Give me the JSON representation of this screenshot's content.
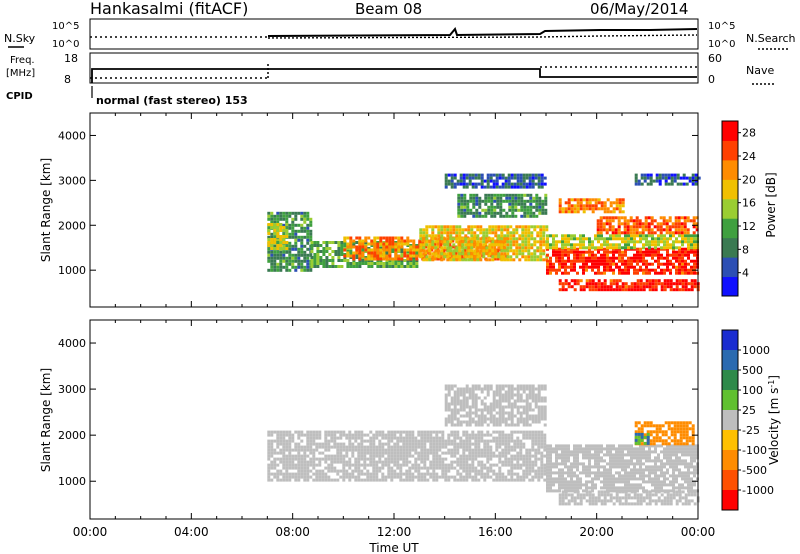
{
  "header": {
    "station": "Hankasalmi (fitACF)",
    "beam": "Beam 08",
    "date": "06/May/2014"
  },
  "noise_panel": {
    "left_label": "N.Sky",
    "right_label": "N.Search",
    "left_ticks": [
      "10^5",
      "10^0"
    ],
    "right_ticks": [
      "10^5",
      "10^0"
    ]
  },
  "freq_panel": {
    "left_label_line1": "Freq.",
    "left_label_line2": "[MHz]",
    "right_label": "Nave",
    "cpid_label": "CPID",
    "left_ticks": [
      "18",
      "8"
    ],
    "right_ticks": [
      "60",
      "0"
    ],
    "cpid_text": "normal (fast stereo) 153"
  },
  "time_axis": {
    "label": "Time UT",
    "ticks": [
      "00:00",
      "04:00",
      "08:00",
      "12:00",
      "16:00",
      "20:00",
      "00:00"
    ]
  },
  "colors": {
    "ground_scatter": "#bebebe",
    "power_scale": [
      "#1010ff",
      "#2c4fb4",
      "#3a7a52",
      "#3fa03f",
      "#9acd32",
      "#f0c000",
      "#ff8c00",
      "#ff4000",
      "#ff0000"
    ],
    "velocity_scale": [
      "#1a2cd0",
      "#2a6ab0",
      "#2e8a4a",
      "#60c030",
      "#bebebe",
      "#ffc000",
      "#ff8c00",
      "#ff5000",
      "#ff0000"
    ]
  },
  "chart_data": [
    {
      "type": "heatmap",
      "title": "Power",
      "ylabel": "Slant Range [km]",
      "xlabel": "",
      "x_range_hours": [
        0,
        24
      ],
      "ylim": [
        180,
        4500
      ],
      "yticks": [
        "4000",
        "3000",
        "2000",
        "1000"
      ],
      "colorbar": {
        "label": "Power [dB]",
        "ticks": [
          "28",
          "24",
          "20",
          "16",
          "12",
          "8",
          "4"
        ],
        "range": [
          0,
          30
        ]
      },
      "bands": [
        {
          "start_h": 7.0,
          "end_h": 8.7,
          "range_km": [
            1000,
            2300
          ],
          "value": 10
        },
        {
          "start_h": 7.0,
          "end_h": 7.8,
          "range_km": [
            1500,
            2050
          ],
          "value": 16
        },
        {
          "start_h": 8.7,
          "end_h": 13.0,
          "range_km": [
            1050,
            1650
          ],
          "value": 12
        },
        {
          "start_h": 10.0,
          "end_h": 16.5,
          "range_km": [
            1250,
            1750
          ],
          "value": 22
        },
        {
          "start_h": 13.0,
          "end_h": 18.0,
          "range_km": [
            1200,
            2000
          ],
          "value": 18
        },
        {
          "start_h": 14.5,
          "end_h": 18.0,
          "range_km": [
            2200,
            2700
          ],
          "value": 10
        },
        {
          "start_h": 14.0,
          "end_h": 18.0,
          "range_km": [
            2850,
            3150
          ],
          "value": 6
        },
        {
          "start_h": 18.0,
          "end_h": 24.0,
          "range_km": [
            900,
            1500
          ],
          "value": 27
        },
        {
          "start_h": 18.0,
          "end_h": 24.0,
          "range_km": [
            1500,
            1800
          ],
          "value": 16
        },
        {
          "start_h": 20.0,
          "end_h": 24.0,
          "range_km": [
            1800,
            2200
          ],
          "value": 24
        },
        {
          "start_h": 18.5,
          "end_h": 21.0,
          "range_km": [
            2300,
            2600
          ],
          "value": 22
        },
        {
          "start_h": 18.5,
          "end_h": 24.0,
          "range_km": [
            550,
            800
          ],
          "value": 27
        },
        {
          "start_h": 21.5,
          "end_h": 24.0,
          "range_km": [
            2900,
            3150
          ],
          "value": 6
        }
      ]
    },
    {
      "type": "heatmap",
      "title": "Velocity",
      "ylabel": "Slant Range [km]",
      "xlabel": "Time UT",
      "x_range_hours": [
        0,
        24
      ],
      "ylim": [
        180,
        4500
      ],
      "yticks": [
        "4000",
        "3000",
        "2000",
        "1000"
      ],
      "colorbar": {
        "label": "Velocity [m s-1]",
        "ticks": [
          "1000",
          "500",
          "100",
          "25",
          "-25",
          "-100",
          "-500",
          "-1000"
        ],
        "range": [
          -1200,
          1200
        ]
      },
      "bands": [
        {
          "start_h": 7.0,
          "end_h": 18.0,
          "range_km": [
            1000,
            2100
          ],
          "value": 0
        },
        {
          "start_h": 14.0,
          "end_h": 18.0,
          "range_km": [
            2200,
            3100
          ],
          "value": 0
        },
        {
          "start_h": 18.0,
          "end_h": 24.0,
          "range_km": [
            800,
            1800
          ],
          "value": 0
        },
        {
          "start_h": 18.5,
          "end_h": 24.0,
          "range_km": [
            500,
            800
          ],
          "value": 0
        },
        {
          "start_h": 21.5,
          "end_h": 23.8,
          "range_km": [
            1800,
            2300
          ],
          "value": -150
        },
        {
          "start_h": 21.5,
          "end_h": 22.0,
          "range_km": [
            1850,
            2050
          ],
          "value": 100
        }
      ]
    }
  ]
}
